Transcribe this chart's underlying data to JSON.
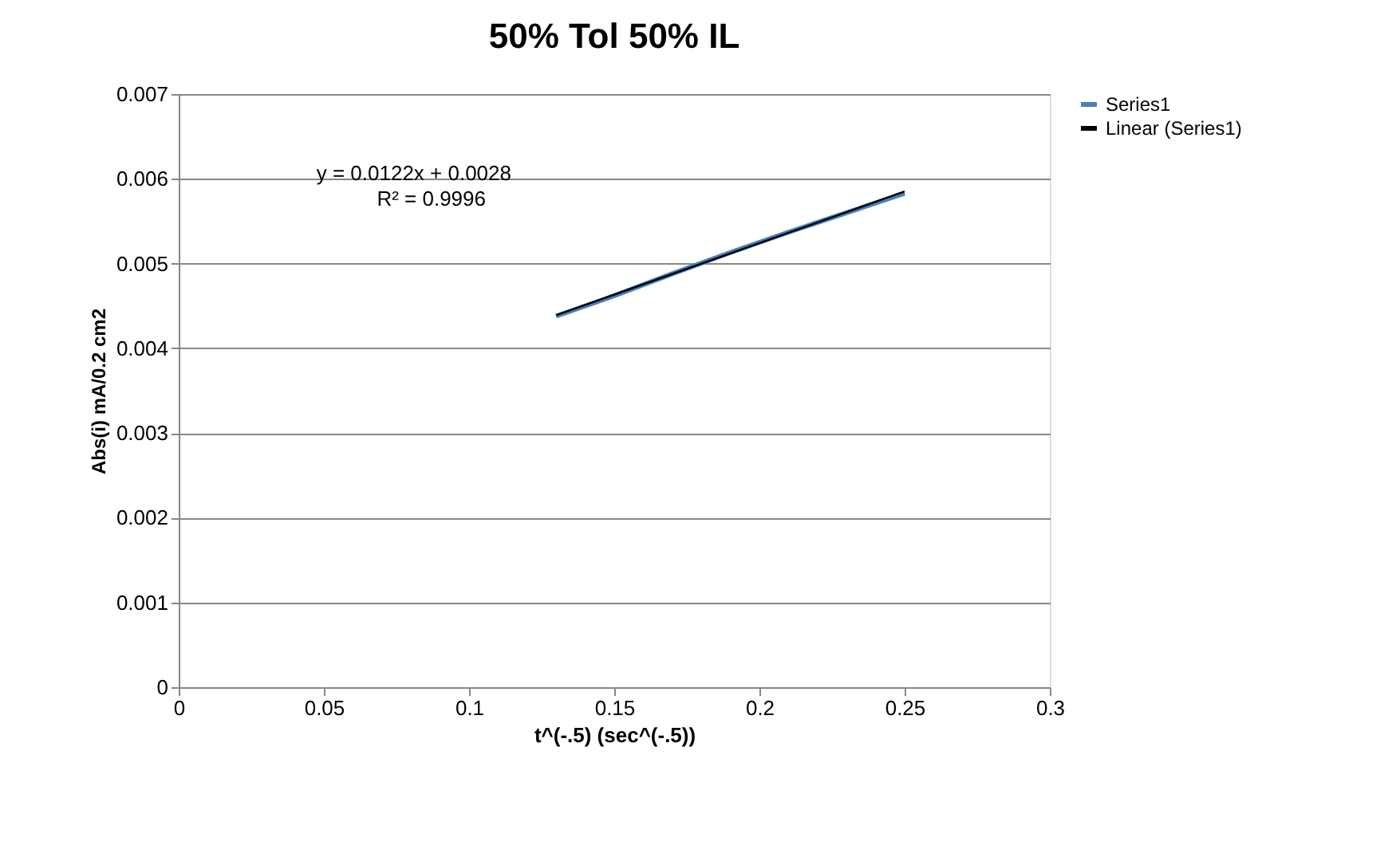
{
  "chart_data": {
    "type": "line",
    "title": "50% Tol 50% IL",
    "xlabel": "t^(-.5) (sec^(-.5))",
    "ylabel": "Abs(i) mA/0.2 cm2",
    "series": [
      {
        "name": "Series1",
        "color": "#4a7ebb",
        "x": [
          0.13,
          0.15,
          0.17,
          0.19,
          0.21,
          0.23,
          0.25
        ],
        "values": [
          0.00438,
          0.00462,
          0.00488,
          0.00513,
          0.00537,
          0.0056,
          0.00583
        ]
      },
      {
        "name": "Linear (Series1)",
        "type": "line",
        "color": "#000000",
        "x": [
          0.13,
          0.25
        ],
        "values": [
          0.00439,
          0.00585
        ]
      }
    ],
    "annotations": [
      "y = 0.0122x + 0.0028",
      "R² = 0.9996"
    ],
    "xlim": [
      0,
      0.3
    ],
    "xticks": [
      0,
      0.05,
      0.1,
      0.15,
      0.2,
      0.25,
      0.3
    ],
    "ylim": [
      0,
      0.007
    ],
    "yticks": [
      0,
      0.001,
      0.002,
      0.003,
      0.004,
      0.005,
      0.006,
      0.007
    ],
    "grid": "y",
    "legend": "right",
    "marker": "none",
    "line_style": "solid"
  }
}
